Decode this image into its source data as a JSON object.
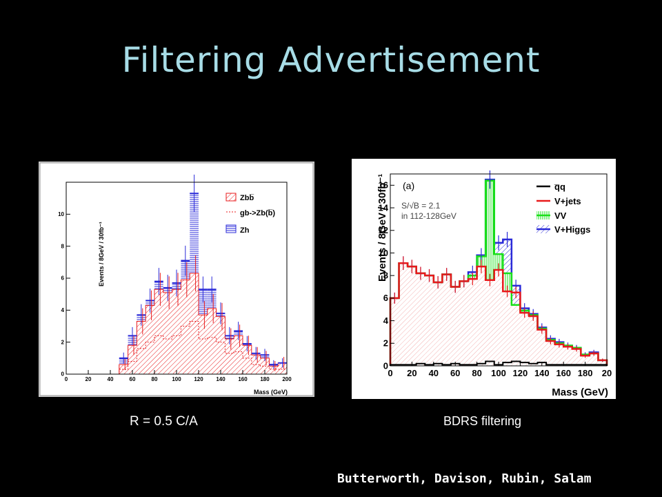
{
  "slide": {
    "title": "Filtering Advertisement",
    "caption_left": "R = 0.5 C/A",
    "caption_right": "BDRS filtering",
    "credit": "Butterworth, Davison, Rubin, Salam"
  },
  "colors": {
    "title": "#a7dce6",
    "background": "#000000",
    "red": "#e8191b",
    "blue": "#2a2ad8",
    "green": "#18e018",
    "black": "#000000"
  },
  "chart_data": [
    {
      "type": "bar",
      "xlabel": "Mass (GeV)",
      "ylabel": "Events / 8GeV / 30fb⁻¹",
      "xlim": [
        0,
        200
      ],
      "ylim": [
        0,
        12
      ],
      "xticks": [
        "0",
        "20",
        "40",
        "60",
        "80",
        "100",
        "120",
        "140",
        "160",
        "180",
        "200"
      ],
      "yticks": [
        "0",
        "2",
        "4",
        "6",
        "8",
        "10"
      ],
      "legend": [
        "Zbb̅",
        "gb->Zb(b̅)",
        "Zh"
      ],
      "legend_position": "top-right",
      "bin_width": 8,
      "bin_starts": [
        0,
        8,
        16,
        24,
        32,
        40,
        48,
        56,
        64,
        72,
        80,
        88,
        96,
        104,
        112,
        120,
        128,
        136,
        144,
        152,
        160,
        168,
        176,
        184,
        192
      ],
      "series": [
        {
          "name": "Zbb̅",
          "values": [
            0,
            0,
            0,
            0,
            0,
            0,
            0.6,
            1.8,
            3.3,
            4.3,
            5.3,
            5.1,
            5.3,
            5.9,
            6.3,
            3.7,
            4.1,
            3.6,
            2.2,
            2.4,
            1.8,
            1.2,
            1.0,
            0.5,
            0.7
          ]
        },
        {
          "name": "gb->Zb(b̅)",
          "values": [
            0,
            0,
            0,
            0,
            0,
            0,
            0.3,
            0.8,
            1.6,
            2.0,
            2.4,
            2.2,
            2.4,
            3.0,
            3.3,
            2.2,
            2.3,
            2.0,
            1.3,
            1.4,
            1.0,
            0.6,
            0.5,
            0.3,
            0.3
          ]
        },
        {
          "name": "Zh",
          "values": [
            0,
            0,
            0,
            0,
            0,
            0,
            1.0,
            2.4,
            3.7,
            4.6,
            5.8,
            5.4,
            5.7,
            7.1,
            11.3,
            5.3,
            5.3,
            3.8,
            2.4,
            2.7,
            1.9,
            1.3,
            1.2,
            0.6,
            0.7
          ]
        }
      ]
    },
    {
      "type": "line",
      "annotation": "(a)",
      "text_box": [
        "S/√B = 2.1",
        "in 112-128GeV"
      ],
      "xlabel": "Mass (GeV)",
      "ylabel": "Events / 8GeV / 30fb⁻¹",
      "xlim": [
        0,
        200
      ],
      "ylim": [
        0,
        17
      ],
      "xticks": [
        "0",
        "20",
        "40",
        "60",
        "80",
        "100",
        "120",
        "140",
        "160",
        "180",
        "20"
      ],
      "yticks": [
        "0",
        "2",
        "4",
        "6",
        "8",
        "10",
        "12",
        "14",
        "16"
      ],
      "legend": [
        "q̅q",
        "V+jets",
        "VV",
        "V+Higgs"
      ],
      "legend_position": "top-right",
      "bin_width": 8,
      "bin_starts": [
        0,
        8,
        16,
        24,
        32,
        40,
        48,
        56,
        64,
        72,
        80,
        88,
        96,
        104,
        112,
        120,
        128,
        136,
        144,
        152,
        160,
        168,
        176,
        184,
        192
      ],
      "series": [
        {
          "name": "q̅q",
          "values": [
            0.1,
            0.1,
            0.1,
            0.2,
            0.1,
            0.2,
            0.1,
            0.2,
            0.1,
            0.1,
            0.2,
            0.4,
            0.1,
            0.3,
            0.4,
            0.3,
            0.2,
            0.3,
            0.1,
            0.1,
            0.1,
            0.1,
            0.1,
            0.1,
            0.1
          ]
        },
        {
          "name": "V+jets",
          "values": [
            6.0,
            9.1,
            8.8,
            8.2,
            8.0,
            7.4,
            8.1,
            7.0,
            7.5,
            7.7,
            8.8,
            7.6,
            8.5,
            6.6,
            6.5,
            4.7,
            4.4,
            3.2,
            2.2,
            1.9,
            1.7,
            1.5,
            0.9,
            1.1,
            0.5
          ]
        },
        {
          "name": "VV",
          "values": [
            6.0,
            9.1,
            8.8,
            8.2,
            8.0,
            7.4,
            8.1,
            7.0,
            7.5,
            8.0,
            9.7,
            16.4,
            9.9,
            8.2,
            5.4,
            4.9,
            4.5,
            3.3,
            2.3,
            2.0,
            1.8,
            1.6,
            1.0,
            1.1,
            0.5
          ]
        },
        {
          "name": "V+Higgs",
          "values": [
            6.0,
            9.1,
            8.8,
            8.2,
            8.0,
            7.4,
            8.1,
            7.0,
            7.5,
            8.3,
            9.8,
            16.5,
            10.9,
            11.2,
            7.1,
            5.1,
            4.6,
            3.4,
            2.4,
            2.1,
            1.8,
            1.6,
            1.0,
            1.2,
            0.5
          ]
        }
      ]
    }
  ]
}
